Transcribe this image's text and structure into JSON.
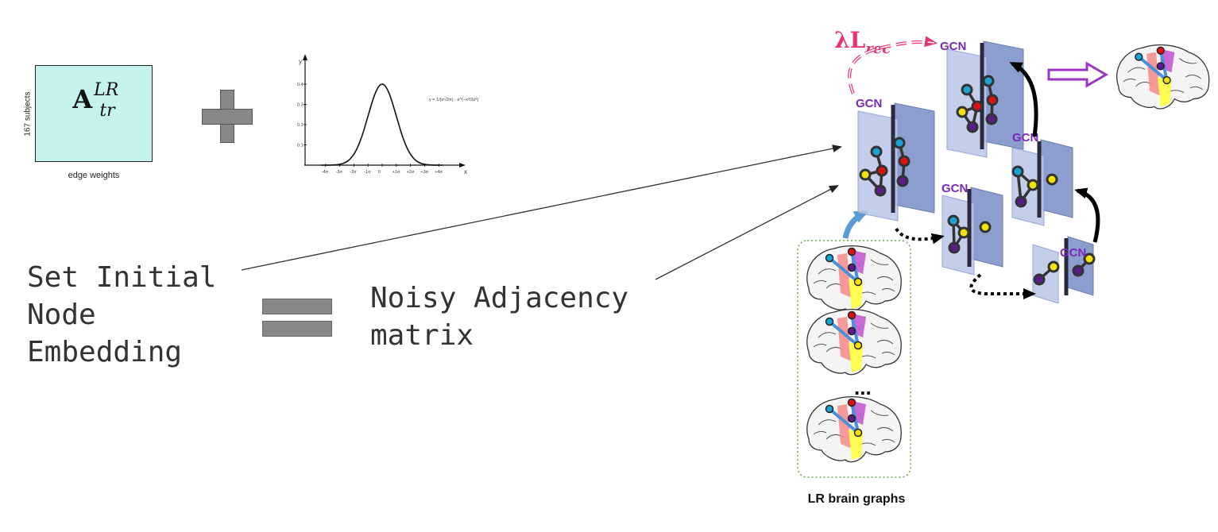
{
  "matrix": {
    "symbol": "A",
    "superscript": "LR",
    "subscript": "tr",
    "row_label": "167 subjects",
    "column_label": "edge weights"
  },
  "gaussian_plot": {
    "y_axis_label": "y",
    "x_axis_label": "x",
    "y_ticks": [
      "0.4",
      "0.3",
      "0.2",
      "0.1"
    ],
    "x_ticks": [
      "-4σ",
      "-3σ",
      "-2σ",
      "-1σ",
      "0",
      "+1σ",
      "+2σ",
      "+3σ",
      "+4σ"
    ],
    "formula": "y = 1/(σ√2π) · e^(−x²/2σ²)"
  },
  "left_text": {
    "line1": "Set Initial",
    "line2": "Node",
    "line3": "Embedding"
  },
  "right_text": {
    "line1": "Noisy Adjacency",
    "line2": "matrix"
  },
  "pipeline": {
    "loss_label": "λL",
    "loss_subscript": "rec",
    "block_label": "GCN",
    "ellipsis": "...",
    "caption": "LR brain graphs"
  },
  "colors": {
    "matrix_fill": "#c4f2ef",
    "operator_gray": "#888888",
    "gcn_label": "#7a28b8",
    "loss_pink": "#e8336f",
    "layer_blue": "#9aaedb",
    "node_cyan": "#1aa3d6",
    "node_red": "#e01010",
    "node_yellow": "#f2e20c",
    "node_purple": "#5c1a8a",
    "output_arrow": "#9b35c8"
  }
}
